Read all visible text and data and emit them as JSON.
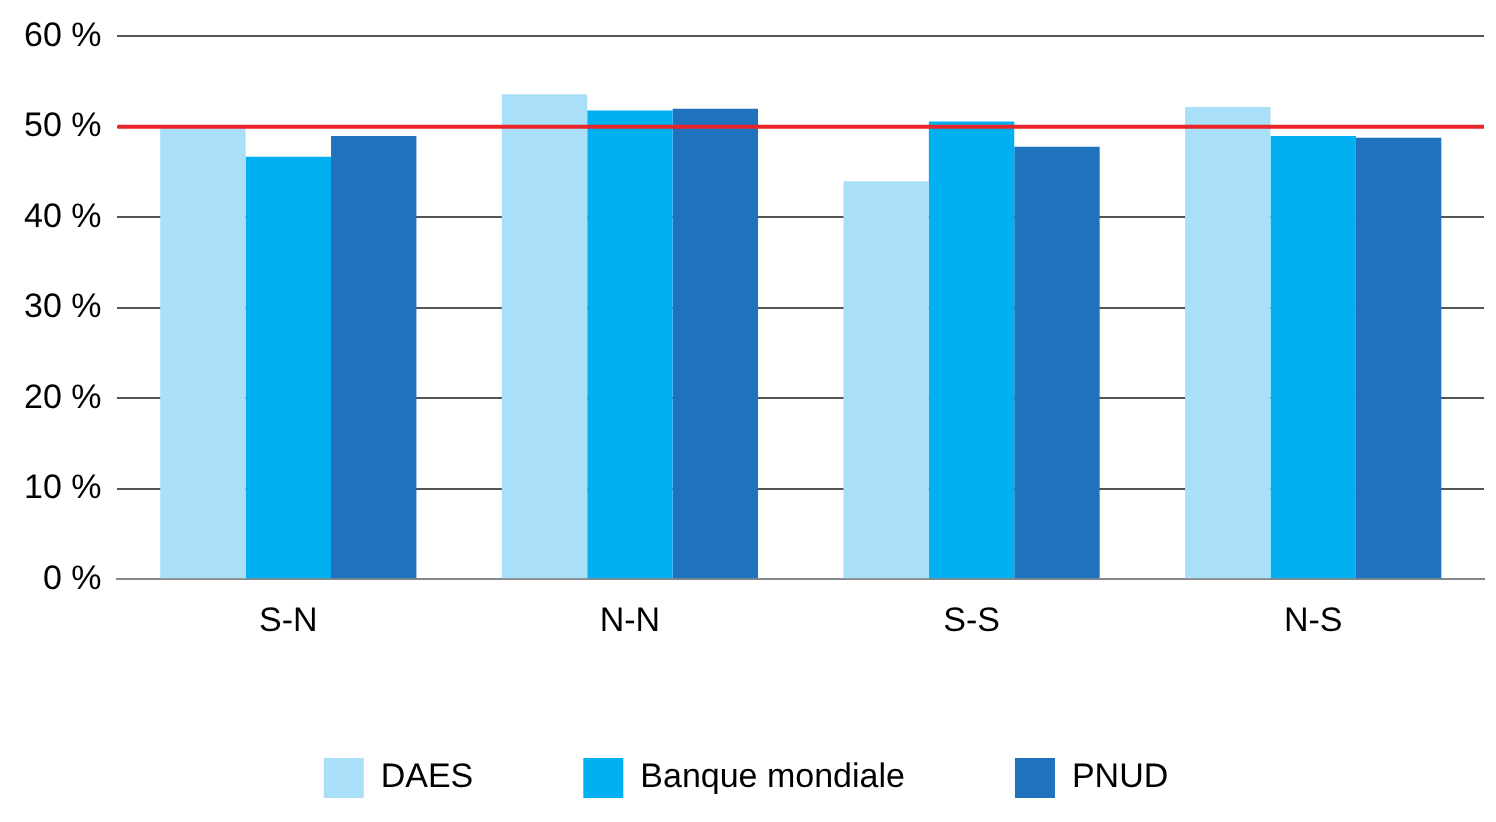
{
  "chart_data": {
    "type": "bar",
    "categories": [
      "S-N",
      "N-N",
      "S-S",
      "N-S"
    ],
    "series": [
      {
        "name": "DAES",
        "color": "#a9dff7",
        "values": [
          50,
          53.6,
          44,
          52.2
        ]
      },
      {
        "name": "Banque mondiale",
        "color": "#00b0f0",
        "values": [
          46.7,
          51.8,
          50.6,
          49
        ]
      },
      {
        "name": "PNUD",
        "color": "#1f73be",
        "values": [
          49,
          52,
          47.8,
          48.8
        ]
      }
    ],
    "ylim": [
      0,
      60
    ],
    "yticks": [
      {
        "value": 0,
        "label": "0 %"
      },
      {
        "value": 10,
        "label": "10 %"
      },
      {
        "value": 20,
        "label": "20 %"
      },
      {
        "value": 30,
        "label": "30 %"
      },
      {
        "value": 40,
        "label": "40 %"
      },
      {
        "value": 50,
        "label": "50 %"
      },
      {
        "value": 60,
        "label": "60 %"
      }
    ],
    "grid": "y",
    "legend": "bottom",
    "ref_lines": [
      {
        "axis": "y",
        "value": 50,
        "color": "#e8262a"
      }
    ]
  }
}
